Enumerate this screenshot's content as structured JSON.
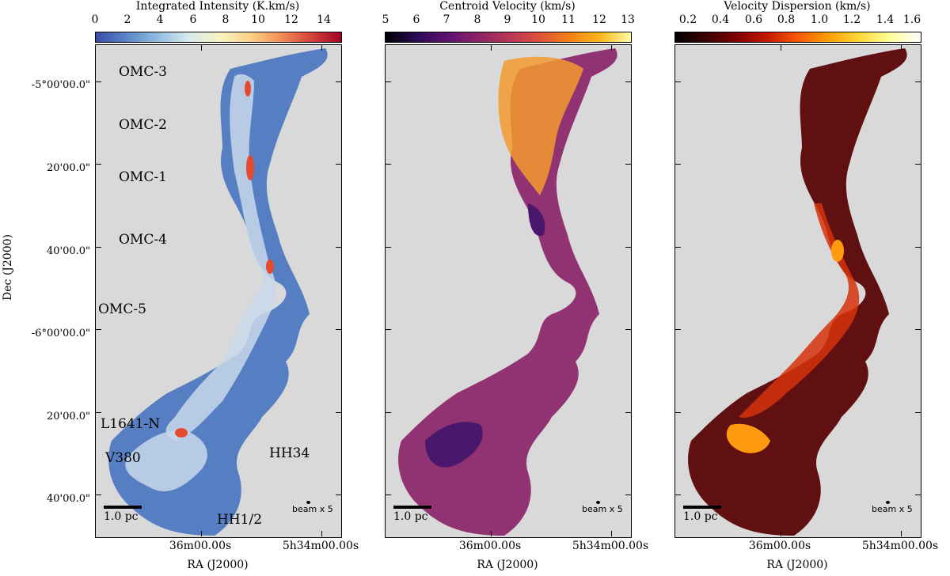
{
  "panels": [
    {
      "title": "Integrated Intensity (K.km/s)",
      "ticks": [
        "0",
        "2",
        "4",
        "6",
        "8",
        "10",
        "12",
        "14"
      ],
      "cmap": "coolwarm-blue-red",
      "fill": "#4f79c2",
      "core": "#c8d8ea",
      "hot": "#e44a2f"
    },
    {
      "title": "Centroid Velocity (km/s)",
      "ticks": [
        "5",
        "6",
        "7",
        "8",
        "9",
        "10",
        "11",
        "12",
        "13"
      ],
      "cmap": "inferno",
      "fill": "#8d2a6d",
      "core": "#f39a2f",
      "hot": "#4b176c"
    },
    {
      "title": "Velocity Dispersion (km/s)",
      "ticks": [
        "0.2",
        "0.4",
        "0.6",
        "0.8",
        "1.0",
        "1.2",
        "1.4",
        "1.6"
      ],
      "cmap": "hot",
      "fill": "#5a0505",
      "core": "#d5330c",
      "hot": "#ff9a10"
    }
  ],
  "y_ticks": [
    "-5°00'00.0\"",
    "20'00.0\"",
    "40'00.0\"",
    "-6°00'00.0\"",
    "20'00.0\"",
    "40'00.0\""
  ],
  "y_label": "Dec (J2000)",
  "x_ticks": [
    "36m00.00s",
    "5h34m00.00s"
  ],
  "x_label": "RA (J2000)",
  "regions": [
    "OMC-3",
    "OMC-2",
    "OMC-1",
    "OMC-4",
    "OMC-5",
    "L1641-N",
    "V380",
    "HH34",
    "HH1/2"
  ],
  "scale_bar": "1.0 pc",
  "beam_label": "beam x 5"
}
